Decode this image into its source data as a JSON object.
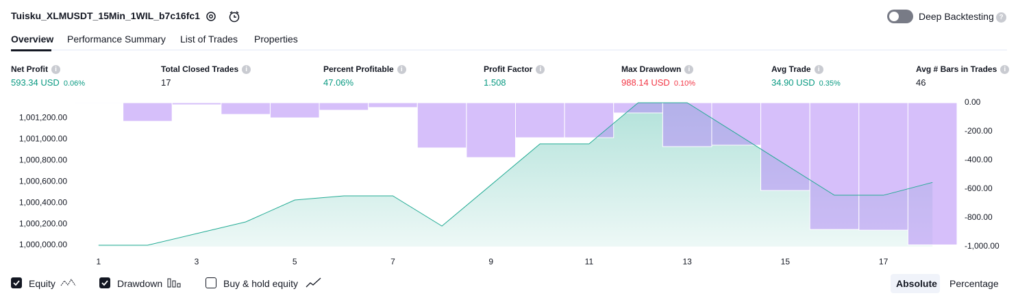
{
  "header": {
    "title": "Tuisku_XLMUSDT_15Min_1WIL_b7c16fc1",
    "toggle_label": "Deep Backtesting"
  },
  "tabs": [
    "Overview",
    "Performance Summary",
    "List of Trades",
    "Properties"
  ],
  "metrics": [
    {
      "label": "Net Profit",
      "value": "593.34 USD",
      "percent": "0.06%",
      "tone": "positive"
    },
    {
      "label": "Total Closed Trades",
      "value": "17",
      "tone": "neutral"
    },
    {
      "label": "Percent Profitable",
      "value": "47.06%",
      "tone": "positive"
    },
    {
      "label": "Profit Factor",
      "value": "1.508",
      "tone": "positive"
    },
    {
      "label": "Max Drawdown",
      "value": "988.14 USD",
      "percent": "0.10%",
      "tone": "negative"
    },
    {
      "label": "Avg Trade",
      "value": "34.90 USD",
      "percent": "0.35%",
      "tone": "positive"
    },
    {
      "label": "Avg # Bars in Trades",
      "value": "46",
      "tone": "neutral"
    }
  ],
  "chart_data": {
    "type": "combo",
    "x": [
      1,
      2,
      3,
      4,
      5,
      6,
      7,
      8,
      9,
      10,
      11,
      12,
      13,
      14,
      15,
      16,
      17,
      18
    ],
    "xlim": [
      0.5,
      18.5
    ],
    "xticks": [
      1,
      3,
      5,
      7,
      9,
      11,
      13,
      15,
      17
    ],
    "ylim": [
      999987,
      1001346
    ],
    "yticks": [
      {
        "value": 1000000,
        "label": "1,000,000.00"
      },
      {
        "value": 1000200,
        "label": "1,000,200.00"
      },
      {
        "value": 1000400,
        "label": "1,000,400.00"
      },
      {
        "value": 1000600,
        "label": "1,000,600.00"
      },
      {
        "value": 1000800,
        "label": "1,000,800.00"
      },
      {
        "value": 1001000,
        "label": "1,001,000.00"
      },
      {
        "value": 1001200,
        "label": "1,001,200.00"
      }
    ],
    "y2lim": [
      -1000,
      0
    ],
    "y2ticks": [
      {
        "value": 0,
        "label": "0.00"
      },
      {
        "value": -200,
        "label": "-200.00"
      },
      {
        "value": -400,
        "label": "-400.00"
      },
      {
        "value": -600,
        "label": "-600.00"
      },
      {
        "value": -800,
        "label": "-800.00"
      },
      {
        "value": -1000,
        "label": "-1,000.00"
      }
    ],
    "series": [
      {
        "name": "Equity",
        "type": "area",
        "color": "#22ab94",
        "values": [
          1000000,
          1000000,
          1000110,
          1000220,
          1000427,
          1000466,
          1000466,
          1000181,
          1000569,
          1000958,
          1000958,
          1001346,
          1001346,
          1001055,
          1000763,
          1000472,
          1000472,
          1000593.34
        ]
      },
      {
        "name": "Drawdown",
        "type": "bar",
        "axis": "y2",
        "color": "#b48af5",
        "values": [
          -5,
          -129,
          -14,
          -81,
          -105,
          -52,
          -33,
          -314,
          -381,
          -243,
          -243,
          -71,
          -305,
          -295,
          -610,
          -881,
          -886,
          -988.14
        ]
      }
    ]
  },
  "footer": {
    "extra_toggle": "Buy & hold equity",
    "modes": [
      "Absolute",
      "Percentage"
    ]
  }
}
